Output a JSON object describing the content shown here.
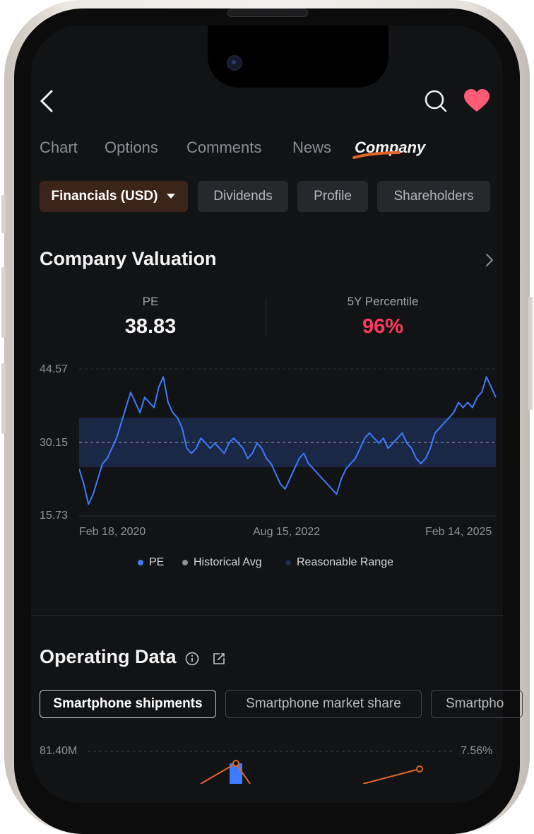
{
  "nav": {
    "tabs": [
      {
        "label": "Chart"
      },
      {
        "label": "Options"
      },
      {
        "label": "Comments"
      },
      {
        "label": "News"
      },
      {
        "label": "Company"
      }
    ],
    "active_tab": "Company"
  },
  "subtabs": {
    "items": [
      {
        "label": "Financials (USD)"
      },
      {
        "label": "Dividends"
      },
      {
        "label": "Profile"
      },
      {
        "label": "Shareholders"
      }
    ]
  },
  "valuation": {
    "title": "Company Valuation",
    "pe_label": "PE",
    "pe_value": "38.83",
    "percentile_label": "5Y Percentile",
    "percentile_value": "96%",
    "percentile_color": "#ff3b5c",
    "legend": {
      "pe": "PE",
      "avg": "Historical Avg",
      "range": "Reasonable Range"
    }
  },
  "chart_data": {
    "type": "line",
    "x_tick_labels": [
      "Feb 18, 2020",
      "Aug 15, 2022",
      "Feb 14, 2025"
    ],
    "y_tick_labels": [
      "44.57",
      "30.15",
      "15.73"
    ],
    "ylim": [
      15.73,
      44.57
    ],
    "historical_avg": 30.15,
    "reasonable_range": [
      25.3,
      35.0
    ],
    "series": [
      {
        "name": "PE",
        "color": "#3d7bff",
        "values": [
          25,
          22,
          18,
          20,
          23,
          26,
          27,
          29,
          31,
          34,
          37,
          40,
          38,
          36,
          39,
          38,
          37,
          41,
          43,
          38,
          36,
          35,
          33,
          29,
          28,
          29,
          31,
          30,
          29,
          30,
          29,
          28,
          30,
          31,
          30,
          29,
          27,
          28,
          30,
          29,
          27,
          26,
          24,
          22,
          21,
          23,
          25,
          27,
          28,
          26,
          25,
          24,
          23,
          22,
          21,
          20,
          23,
          25,
          26,
          27,
          29,
          31,
          32,
          31,
          30,
          31,
          29,
          30,
          31,
          32,
          30,
          29,
          27,
          26,
          27,
          29,
          32,
          33,
          34,
          35,
          36,
          38,
          37,
          38,
          37,
          39,
          40,
          43,
          41,
          39
        ]
      }
    ]
  },
  "operating": {
    "title": "Operating Data",
    "options": [
      {
        "label": "Smartphone shipments"
      },
      {
        "label": "Smartphone market share"
      },
      {
        "label": "Smartpho"
      }
    ],
    "left_axis_top": "81.40M",
    "right_axis_top": "7.56%"
  },
  "colors": {
    "accent": "#e0662a",
    "heart": "#ff5a76",
    "background": "#121315",
    "pe_line": "#3d7bff"
  }
}
